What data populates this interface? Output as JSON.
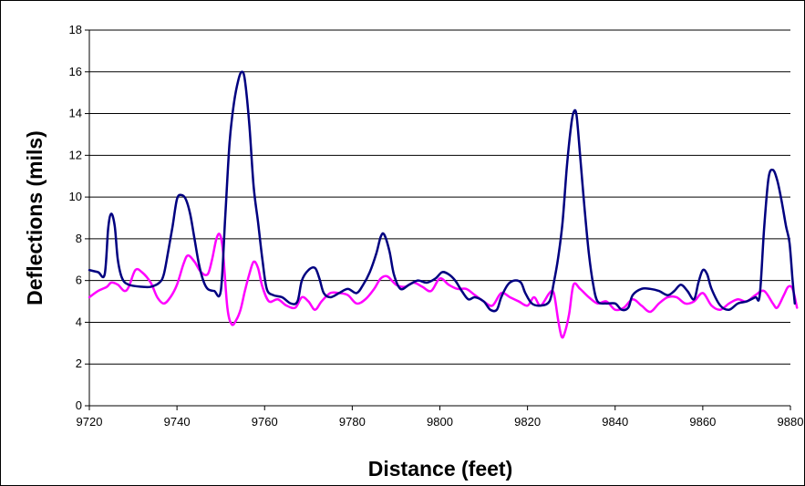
{
  "chart_data": {
    "type": "line",
    "xlabel": "Distance (feet)",
    "ylabel": "Deflections (mils)",
    "xlim": [
      9720,
      9880
    ],
    "ylim": [
      0,
      18
    ],
    "x_ticks": [
      "9720",
      "9740",
      "9760",
      "9780",
      "9800",
      "9820",
      "9840",
      "9860",
      "9880"
    ],
    "y_ticks": [
      "0",
      "2",
      "4",
      "6",
      "8",
      "10",
      "12",
      "14",
      "16",
      "18"
    ],
    "grid": "horizontal",
    "legend": "none",
    "series": [
      {
        "color": "#000080",
        "points": [
          [
            9720,
            6.5
          ],
          [
            9722,
            6.4
          ],
          [
            9723.5,
            6.3
          ],
          [
            9724.3,
            8.5
          ],
          [
            9725,
            9.2
          ],
          [
            9725.8,
            8.6
          ],
          [
            9726.5,
            7.0
          ],
          [
            9727.5,
            6.1
          ],
          [
            9729,
            5.8
          ],
          [
            9732,
            5.7
          ],
          [
            9734,
            5.7
          ],
          [
            9736,
            5.9
          ],
          [
            9737,
            6.3
          ],
          [
            9738,
            7.4
          ],
          [
            9739,
            8.6
          ],
          [
            9740,
            9.9
          ],
          [
            9741,
            10.1
          ],
          [
            9742,
            9.9
          ],
          [
            9743,
            9.2
          ],
          [
            9744,
            8.0
          ],
          [
            9745,
            6.8
          ],
          [
            9746,
            6.0
          ],
          [
            9747,
            5.6
          ],
          [
            9748.5,
            5.5
          ],
          [
            9750,
            5.5
          ],
          [
            9751,
            9.0
          ],
          [
            9752,
            12.6
          ],
          [
            9753,
            14.5
          ],
          [
            9754,
            15.6
          ],
          [
            9754.8,
            16.0
          ],
          [
            9755.5,
            15.6
          ],
          [
            9756.5,
            13.5
          ],
          [
            9757.5,
            10.5
          ],
          [
            9758.5,
            8.8
          ],
          [
            9759.5,
            7.0
          ],
          [
            9760.5,
            5.6
          ],
          [
            9762,
            5.3
          ],
          [
            9764,
            5.2
          ],
          [
            9766,
            4.9
          ],
          [
            9767.5,
            5.0
          ],
          [
            9768.5,
            6.0
          ],
          [
            9770,
            6.5
          ],
          [
            9771.5,
            6.6
          ],
          [
            9772.5,
            6.1
          ],
          [
            9773.5,
            5.4
          ],
          [
            9775,
            5.2
          ],
          [
            9777,
            5.4
          ],
          [
            9779,
            5.6
          ],
          [
            9781,
            5.4
          ],
          [
            9782.5,
            5.8
          ],
          [
            9784,
            6.4
          ],
          [
            9785.5,
            7.3
          ],
          [
            9786.5,
            8.1
          ],
          [
            9787.3,
            8.2
          ],
          [
            9788.5,
            7.4
          ],
          [
            9789.5,
            6.3
          ],
          [
            9791,
            5.6
          ],
          [
            9793,
            5.8
          ],
          [
            9795,
            6.0
          ],
          [
            9797,
            5.9
          ],
          [
            9799,
            6.1
          ],
          [
            9800.5,
            6.4
          ],
          [
            9802,
            6.3
          ],
          [
            9803.5,
            6.0
          ],
          [
            9805,
            5.5
          ],
          [
            9806.5,
            5.1
          ],
          [
            9808,
            5.2
          ],
          [
            9810,
            5.0
          ],
          [
            9811.5,
            4.6
          ],
          [
            9813,
            4.6
          ],
          [
            9814,
            5.2
          ],
          [
            9815.5,
            5.8
          ],
          [
            9817,
            6.0
          ],
          [
            9818.5,
            5.9
          ],
          [
            9819.5,
            5.4
          ],
          [
            9821,
            4.9
          ],
          [
            9823,
            4.8
          ],
          [
            9825,
            5.0
          ],
          [
            9826,
            5.9
          ],
          [
            9827,
            7.1
          ],
          [
            9828,
            8.8
          ],
          [
            9829,
            11.5
          ],
          [
            9830,
            13.5
          ],
          [
            9830.6,
            14.1
          ],
          [
            9831.2,
            13.9
          ],
          [
            9832,
            12.0
          ],
          [
            9833,
            9.5
          ],
          [
            9834,
            7.3
          ],
          [
            9835,
            5.8
          ],
          [
            9836,
            5.0
          ],
          [
            9838,
            4.9
          ],
          [
            9840,
            4.9
          ],
          [
            9841.5,
            4.6
          ],
          [
            9843,
            4.7
          ],
          [
            9844,
            5.3
          ],
          [
            9846,
            5.6
          ],
          [
            9848,
            5.6
          ],
          [
            9850,
            5.5
          ],
          [
            9852,
            5.3
          ],
          [
            9853.5,
            5.5
          ],
          [
            9855,
            5.8
          ],
          [
            9856.5,
            5.5
          ],
          [
            9858,
            5.1
          ],
          [
            9859,
            5.9
          ],
          [
            9860,
            6.5
          ],
          [
            9861,
            6.3
          ],
          [
            9862,
            5.6
          ],
          [
            9864,
            4.8
          ],
          [
            9866,
            4.6
          ],
          [
            9868,
            4.9
          ],
          [
            9870,
            5.0
          ],
          [
            9872,
            5.2
          ],
          [
            9873,
            5.3
          ],
          [
            9874,
            8.5
          ],
          [
            9875,
            10.9
          ],
          [
            9876,
            11.3
          ],
          [
            9877,
            10.8
          ],
          [
            9878,
            9.8
          ],
          [
            9879,
            8.6
          ],
          [
            9879.8,
            7.8
          ],
          [
            9880.5,
            6.0
          ],
          [
            9881,
            4.9
          ]
        ]
      },
      {
        "color": "#ff00ff",
        "points": [
          [
            9720,
            5.2
          ],
          [
            9722,
            5.5
          ],
          [
            9724,
            5.7
          ],
          [
            9725,
            5.9
          ],
          [
            9726.5,
            5.8
          ],
          [
            9728,
            5.5
          ],
          [
            9729,
            5.7
          ],
          [
            9730.5,
            6.5
          ],
          [
            9732,
            6.4
          ],
          [
            9734,
            5.9
          ],
          [
            9735.5,
            5.2
          ],
          [
            9737,
            4.9
          ],
          [
            9738.5,
            5.2
          ],
          [
            9740,
            5.8
          ],
          [
            9741.5,
            6.8
          ],
          [
            9742.5,
            7.2
          ],
          [
            9744,
            6.9
          ],
          [
            9745.5,
            6.4
          ],
          [
            9747,
            6.3
          ],
          [
            9748,
            7.0
          ],
          [
            9749,
            8.0
          ],
          [
            9749.8,
            8.2
          ],
          [
            9750.5,
            7.4
          ],
          [
            9751.5,
            4.7
          ],
          [
            9752.5,
            3.9
          ],
          [
            9753.5,
            4.1
          ],
          [
            9754.5,
            4.6
          ],
          [
            9755.5,
            5.5
          ],
          [
            9756.5,
            6.3
          ],
          [
            9757.5,
            6.9
          ],
          [
            9758.5,
            6.6
          ],
          [
            9759.5,
            5.7
          ],
          [
            9761,
            5.0
          ],
          [
            9763,
            5.1
          ],
          [
            9765,
            4.8
          ],
          [
            9767,
            4.7
          ],
          [
            9768.5,
            5.2
          ],
          [
            9770,
            5.0
          ],
          [
            9771.5,
            4.6
          ],
          [
            9773,
            5.0
          ],
          [
            9775,
            5.4
          ],
          [
            9777,
            5.4
          ],
          [
            9779,
            5.3
          ],
          [
            9781,
            4.9
          ],
          [
            9783,
            5.1
          ],
          [
            9785,
            5.6
          ],
          [
            9786.5,
            6.1
          ],
          [
            9788,
            6.2
          ],
          [
            9790,
            5.8
          ],
          [
            9792,
            5.7
          ],
          [
            9794,
            5.9
          ],
          [
            9796,
            5.7
          ],
          [
            9798,
            5.5
          ],
          [
            9800,
            6.1
          ],
          [
            9802,
            5.8
          ],
          [
            9804,
            5.6
          ],
          [
            9806,
            5.6
          ],
          [
            9808,
            5.3
          ],
          [
            9810,
            5.0
          ],
          [
            9812,
            4.8
          ],
          [
            9814,
            5.4
          ],
          [
            9816,
            5.2
          ],
          [
            9818,
            5.0
          ],
          [
            9820,
            4.8
          ],
          [
            9821.5,
            5.2
          ],
          [
            9823,
            4.8
          ],
          [
            9825,
            5.4
          ],
          [
            9826,
            5.4
          ],
          [
            9827,
            4.1
          ],
          [
            9827.8,
            3.3
          ],
          [
            9828.5,
            3.5
          ],
          [
            9829.5,
            4.4
          ],
          [
            9830.5,
            5.8
          ],
          [
            9832,
            5.6
          ],
          [
            9834,
            5.2
          ],
          [
            9836,
            4.9
          ],
          [
            9838,
            5.0
          ],
          [
            9840,
            4.6
          ],
          [
            9842,
            4.7
          ],
          [
            9844,
            5.1
          ],
          [
            9846,
            4.8
          ],
          [
            9848,
            4.5
          ],
          [
            9850,
            4.9
          ],
          [
            9852,
            5.2
          ],
          [
            9854,
            5.2
          ],
          [
            9856,
            4.9
          ],
          [
            9858,
            5.0
          ],
          [
            9860,
            5.4
          ],
          [
            9862,
            4.8
          ],
          [
            9864,
            4.6
          ],
          [
            9866,
            4.9
          ],
          [
            9868,
            5.1
          ],
          [
            9870,
            5.0
          ],
          [
            9872,
            5.3
          ],
          [
            9874,
            5.5
          ],
          [
            9876,
            4.9
          ],
          [
            9877,
            4.7
          ],
          [
            9878.5,
            5.3
          ],
          [
            9879.5,
            5.7
          ],
          [
            9880.5,
            5.6
          ],
          [
            9881.5,
            4.7
          ]
        ]
      }
    ]
  }
}
